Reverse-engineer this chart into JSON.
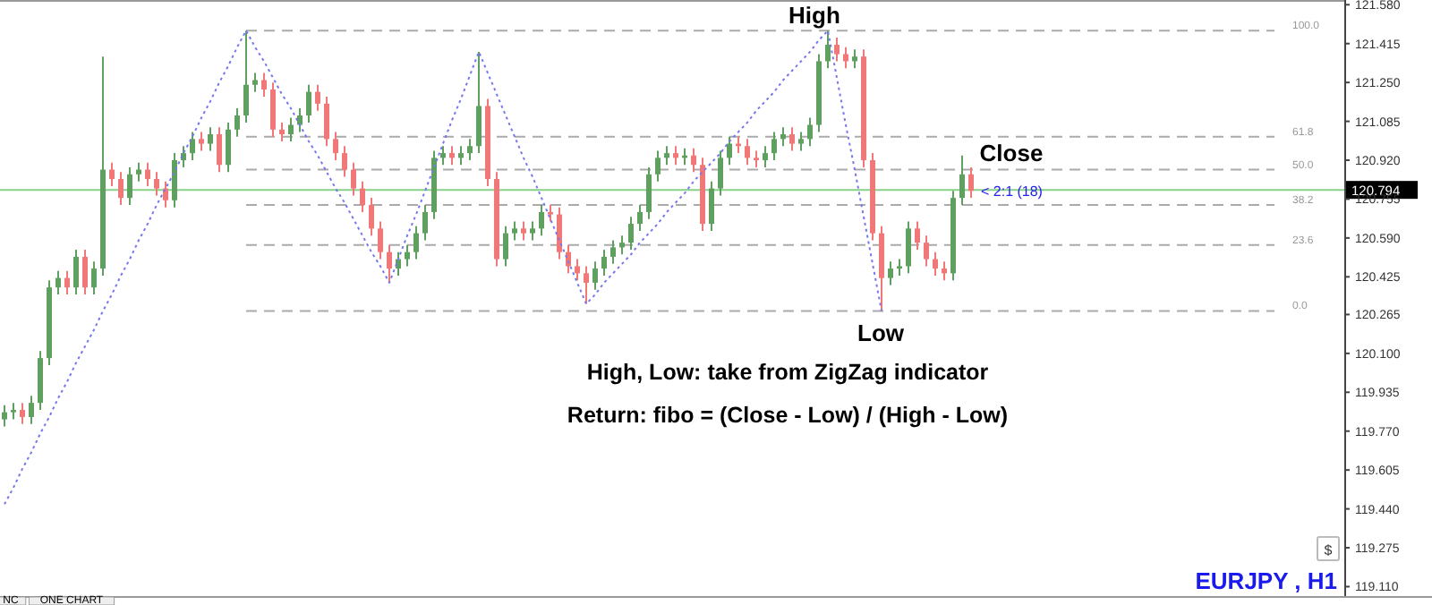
{
  "chart_data": {
    "type": "candlestick",
    "title": "EURJPY , H1",
    "categories": [
      null,
      null,
      null,
      null,
      null,
      null,
      null,
      null,
      null,
      null,
      null,
      null,
      null,
      null,
      null,
      null,
      null,
      null,
      null,
      null,
      null,
      null,
      null,
      null,
      null,
      null,
      null,
      null,
      null,
      null,
      null,
      null,
      null,
      null,
      null,
      null,
      null,
      null,
      null,
      null,
      null,
      null,
      null,
      null,
      null,
      null,
      null,
      null,
      null,
      null,
      null,
      null,
      null,
      null,
      null,
      null,
      null,
      null,
      null,
      null,
      null,
      null,
      null,
      null,
      null,
      null,
      null,
      null,
      null,
      null,
      null,
      null,
      null,
      null,
      null,
      null,
      null,
      null,
      null,
      null,
      null,
      null,
      null,
      null,
      null,
      null,
      null,
      null,
      null,
      null,
      null,
      null,
      null,
      null,
      null,
      null,
      null,
      null,
      null,
      null,
      null,
      null,
      null,
      null,
      null,
      null,
      null,
      null,
      null
    ],
    "ohlc": [
      [
        119.82,
        119.88,
        119.79,
        119.85
      ],
      [
        119.85,
        119.89,
        119.82,
        119.86
      ],
      [
        119.86,
        119.89,
        119.8,
        119.83
      ],
      [
        119.83,
        119.92,
        119.8,
        119.89
      ],
      [
        119.89,
        120.11,
        119.86,
        120.08
      ],
      [
        120.08,
        120.41,
        120.05,
        120.38
      ],
      [
        120.38,
        120.45,
        120.35,
        120.42
      ],
      [
        120.42,
        120.45,
        120.35,
        120.38
      ],
      [
        120.38,
        120.54,
        120.35,
        120.51
      ],
      [
        120.51,
        120.54,
        120.35,
        120.38
      ],
      [
        120.38,
        120.49,
        120.35,
        120.46
      ],
      [
        120.46,
        121.36,
        120.43,
        120.88
      ],
      [
        120.88,
        120.91,
        120.81,
        120.84
      ],
      [
        120.84,
        120.87,
        120.73,
        120.76
      ],
      [
        120.76,
        120.89,
        120.73,
        120.86
      ],
      [
        120.86,
        120.91,
        120.83,
        120.88
      ],
      [
        120.88,
        120.91,
        120.81,
        120.84
      ],
      [
        120.84,
        120.87,
        120.77,
        120.8
      ],
      [
        120.8,
        120.83,
        120.72,
        120.75
      ],
      [
        120.75,
        120.95,
        120.72,
        120.92
      ],
      [
        120.92,
        120.98,
        120.89,
        120.95
      ],
      [
        120.95,
        121.04,
        120.92,
        121.01
      ],
      [
        121.01,
        121.04,
        120.96,
        120.99
      ],
      [
        120.99,
        121.06,
        120.96,
        121.03
      ],
      [
        121.03,
        121.06,
        120.87,
        120.9
      ],
      [
        120.9,
        121.08,
        120.87,
        121.05
      ],
      [
        121.05,
        121.14,
        121.02,
        121.11
      ],
      [
        121.11,
        121.47,
        121.08,
        121.24
      ],
      [
        121.24,
        121.29,
        121.21,
        121.26
      ],
      [
        121.26,
        121.29,
        121.19,
        121.22
      ],
      [
        121.22,
        121.25,
        121.02,
        121.05
      ],
      [
        121.05,
        121.08,
        121,
        121.03
      ],
      [
        121.03,
        121.1,
        121,
        121.07
      ],
      [
        121.07,
        121.14,
        121.04,
        121.11
      ],
      [
        121.11,
        121.24,
        121.08,
        121.21
      ],
      [
        121.21,
        121.24,
        121.13,
        121.16
      ],
      [
        121.16,
        121.19,
        120.98,
        121.01
      ],
      [
        121.01,
        121.04,
        120.92,
        120.95
      ],
      [
        120.95,
        120.98,
        120.85,
        120.88
      ],
      [
        120.88,
        120.91,
        120.77,
        120.8
      ],
      [
        120.8,
        120.83,
        120.7,
        120.73
      ],
      [
        120.73,
        120.76,
        120.6,
        120.63
      ],
      [
        120.63,
        120.66,
        120.5,
        120.53
      ],
      [
        120.53,
        120.56,
        120.4,
        120.46
      ],
      [
        120.46,
        120.53,
        120.43,
        120.5
      ],
      [
        120.5,
        120.56,
        120.47,
        120.53
      ],
      [
        120.53,
        120.64,
        120.5,
        120.61
      ],
      [
        120.61,
        120.73,
        120.58,
        120.7
      ],
      [
        120.7,
        120.96,
        120.67,
        120.93
      ],
      [
        120.93,
        120.98,
        120.9,
        120.95
      ],
      [
        120.95,
        120.98,
        120.9,
        120.93
      ],
      [
        120.93,
        120.98,
        120.9,
        120.95
      ],
      [
        120.95,
        121.01,
        120.92,
        120.98
      ],
      [
        120.98,
        121.38,
        120.95,
        121.15
      ],
      [
        121.15,
        121.18,
        120.81,
        120.84
      ],
      [
        120.84,
        120.87,
        120.47,
        120.5
      ],
      [
        120.5,
        120.64,
        120.47,
        120.61
      ],
      [
        120.61,
        120.66,
        120.58,
        120.63
      ],
      [
        120.63,
        120.66,
        120.58,
        120.61
      ],
      [
        120.61,
        120.66,
        120.58,
        120.63
      ],
      [
        120.63,
        120.73,
        120.6,
        120.7
      ],
      [
        120.7,
        120.73,
        120.66,
        120.69
      ],
      [
        120.69,
        120.72,
        120.5,
        120.53
      ],
      [
        120.53,
        120.56,
        120.44,
        120.47
      ],
      [
        120.47,
        120.5,
        120.41,
        120.44
      ],
      [
        120.44,
        120.47,
        120.31,
        120.4
      ],
      [
        120.4,
        120.49,
        120.37,
        120.46
      ],
      [
        120.46,
        120.54,
        120.43,
        120.51
      ],
      [
        120.51,
        120.58,
        120.48,
        120.55
      ],
      [
        120.55,
        120.6,
        120.52,
        120.57
      ],
      [
        120.57,
        120.68,
        120.54,
        120.65
      ],
      [
        120.65,
        120.73,
        120.62,
        120.7
      ],
      [
        120.7,
        120.89,
        120.67,
        120.86
      ],
      [
        120.86,
        120.96,
        120.83,
        120.93
      ],
      [
        120.93,
        120.98,
        120.9,
        120.95
      ],
      [
        120.95,
        120.98,
        120.9,
        120.93
      ],
      [
        120.93,
        120.97,
        120.9,
        120.94
      ],
      [
        120.94,
        120.97,
        120.87,
        120.9
      ],
      [
        120.9,
        120.93,
        120.62,
        120.65
      ],
      [
        120.65,
        120.83,
        120.62,
        120.8
      ],
      [
        120.8,
        120.96,
        120.77,
        120.93
      ],
      [
        120.93,
        121.02,
        120.9,
        120.99
      ],
      [
        120.99,
        121.02,
        120.95,
        120.98
      ],
      [
        120.98,
        121.01,
        120.9,
        120.93
      ],
      [
        120.93,
        120.96,
        120.89,
        120.92
      ],
      [
        120.92,
        120.98,
        120.89,
        120.95
      ],
      [
        120.95,
        121.04,
        120.92,
        121.01
      ],
      [
        121.01,
        121.06,
        120.98,
        121.03
      ],
      [
        121.03,
        121.06,
        120.96,
        120.99
      ],
      [
        120.99,
        121.04,
        120.96,
        121.01
      ],
      [
        121.01,
        121.1,
        120.98,
        121.07
      ],
      [
        121.07,
        121.37,
        121.04,
        121.34
      ],
      [
        121.34,
        121.47,
        121.31,
        121.41
      ],
      [
        121.41,
        121.44,
        121.34,
        121.37
      ],
      [
        121.37,
        121.4,
        121.31,
        121.34
      ],
      [
        121.34,
        121.39,
        121.31,
        121.36
      ],
      [
        121.36,
        121.39,
        120.89,
        120.92
      ],
      [
        120.92,
        120.95,
        120.58,
        120.61
      ],
      [
        120.61,
        120.64,
        120.28,
        120.42
      ],
      [
        120.42,
        120.49,
        120.39,
        120.46
      ],
      [
        120.46,
        120.5,
        120.43,
        120.47
      ],
      [
        120.47,
        120.66,
        120.44,
        120.63
      ],
      [
        120.63,
        120.66,
        120.54,
        120.57
      ],
      [
        120.57,
        120.6,
        120.47,
        120.5
      ],
      [
        120.5,
        120.53,
        120.43,
        120.46
      ],
      [
        120.46,
        120.49,
        120.41,
        120.44
      ],
      [
        120.44,
        120.79,
        120.41,
        120.76
      ],
      [
        120.76,
        120.94,
        120.73,
        120.86
      ],
      [
        120.86,
        120.89,
        120.76,
        120.79
      ]
    ],
    "colors": [
      "#5f9f5f",
      "#5f9f5f",
      "#f07878",
      "#5f9f5f",
      "#5f9f5f",
      "#5f9f5f",
      "#5f9f5f",
      "#f07878",
      "#5f9f5f",
      "#f07878",
      "#5f9f5f",
      "#5f9f5f",
      "#f07878",
      "#f07878",
      "#5f9f5f",
      "#5f9f5f",
      "#f07878",
      "#f07878",
      "#f07878",
      "#5f9f5f",
      "#5f9f5f",
      "#5f9f5f",
      "#f07878",
      "#5f9f5f",
      "#f07878",
      "#5f9f5f",
      "#5f9f5f",
      "#5f9f5f",
      "#5f9f5f",
      "#f07878",
      "#f07878",
      "#f07878",
      "#5f9f5f",
      "#5f9f5f",
      "#5f9f5f",
      "#f07878",
      "#f07878",
      "#f07878",
      "#f07878",
      "#f07878",
      "#f07878",
      "#f07878",
      "#f07878",
      "#f07878",
      "#5f9f5f",
      "#5f9f5f",
      "#5f9f5f",
      "#5f9f5f",
      "#5f9f5f",
      "#5f9f5f",
      "#f07878",
      "#5f9f5f",
      "#5f9f5f",
      "#5f9f5f",
      "#f07878",
      "#f07878",
      "#5f9f5f",
      "#5f9f5f",
      "#f07878",
      "#5f9f5f",
      "#5f9f5f",
      "#f07878",
      "#f07878",
      "#f07878",
      "#f07878",
      "#f07878",
      "#5f9f5f",
      "#5f9f5f",
      "#5f9f5f",
      "#5f9f5f",
      "#5f9f5f",
      "#5f9f5f",
      "#5f9f5f",
      "#5f9f5f",
      "#5f9f5f",
      "#f07878",
      "#5f9f5f",
      "#f07878",
      "#f07878",
      "#5f9f5f",
      "#5f9f5f",
      "#5f9f5f",
      "#f07878",
      "#f07878",
      "#f07878",
      "#5f9f5f",
      "#5f9f5f",
      "#5f9f5f",
      "#f07878",
      "#5f9f5f",
      "#5f9f5f",
      "#5f9f5f",
      "#5f9f5f",
      "#f07878",
      "#f07878",
      "#5f9f5f",
      "#f07878",
      "#f07878",
      "#f07878",
      "#5f9f5f",
      "#5f9f5f",
      "#5f9f5f",
      "#f07878",
      "#f07878",
      "#f07878",
      "#f07878",
      "#5f9f5f",
      "#5f9f5f",
      "#f07878"
    ],
    "series": [
      {
        "type": "line",
        "color": "#7777ee",
        "line_style": "dotted",
        "values": [
          119.46,
          119.53,
          119.61,
          119.68,
          119.76,
          119.83,
          119.91,
          119.98,
          120.06,
          120.13,
          120.2,
          120.28,
          120.35,
          120.43,
          120.5,
          120.58,
          120.65,
          120.73,
          120.8,
          120.87,
          120.95,
          121.02,
          121.1,
          121.17,
          121.25,
          121.32,
          121.4,
          121.47,
          121.4,
          121.34,
          121.27,
          121.2,
          121.14,
          121.07,
          121,
          120.94,
          120.87,
          120.8,
          120.74,
          120.67,
          120.6,
          120.53,
          120.47,
          120.4,
          120.5,
          120.6,
          120.69,
          120.79,
          120.89,
          120.99,
          121.09,
          121.18,
          121.28,
          121.38,
          121.29,
          121.2,
          121.11,
          121.02,
          120.93,
          120.85,
          120.76,
          120.67,
          120.58,
          120.49,
          120.4,
          120.31,
          120.35,
          120.4,
          120.44,
          120.48,
          120.52,
          120.57,
          120.61,
          120.65,
          120.7,
          120.74,
          120.78,
          120.83,
          120.87,
          120.91,
          120.95,
          121,
          121.04,
          121.08,
          121.13,
          121.17,
          121.21,
          121.26,
          121.3,
          121.34,
          121.38,
          121.43,
          121.47,
          121.27,
          121.07,
          120.88,
          120.68,
          120.48,
          120.28,
          null,
          null,
          null,
          null,
          null,
          null,
          null,
          null,
          null,
          null
        ]
      }
    ],
    "ylim": [
      119.07,
      121.6
    ],
    "yticks": [
      {
        "value": 121.58,
        "label": "121.580"
      },
      {
        "value": 121.415,
        "label": "121.415"
      },
      {
        "value": 121.25,
        "label": "121.250"
      },
      {
        "value": 121.085,
        "label": "121.085"
      },
      {
        "value": 120.92,
        "label": "120.920"
      },
      {
        "value": 120.755,
        "label": "120.755"
      },
      {
        "value": 120.59,
        "label": "120.590"
      },
      {
        "value": 120.425,
        "label": "120.425"
      },
      {
        "value": 120.265,
        "label": "120.265"
      },
      {
        "value": 120.1,
        "label": "120.100"
      },
      {
        "value": 119.935,
        "label": "119.935"
      },
      {
        "value": 119.77,
        "label": "119.770"
      },
      {
        "value": 119.605,
        "label": "119.605"
      },
      {
        "value": 119.44,
        "label": "119.440"
      },
      {
        "value": 119.275,
        "label": "119.275"
      },
      {
        "value": 119.11,
        "label": "119.110"
      }
    ],
    "tick_labels": "y",
    "ref_lines": [
      {
        "axis": "y",
        "value": 121.47,
        "color": "#aaaaaa",
        "line_style": "dashed"
      },
      {
        "axis": "y",
        "value": 121.02,
        "color": "#aaaaaa",
        "line_style": "dashed"
      },
      {
        "axis": "y",
        "value": 120.88,
        "color": "#aaaaaa",
        "line_style": "dashed"
      },
      {
        "axis": "y",
        "value": 120.73,
        "color": "#aaaaaa",
        "line_style": "dashed"
      },
      {
        "axis": "y",
        "value": 120.56,
        "color": "#aaaaaa",
        "line_style": "dashed"
      },
      {
        "axis": "y",
        "value": 120.28,
        "color": "#aaaaaa",
        "line_style": "dashed"
      },
      {
        "axis": "y",
        "value": 120.794,
        "label": "120.794",
        "color": "#88d088",
        "line_style": "solid"
      }
    ],
    "annotations": [
      {
        "text": "High",
        "y": 121.47
      },
      {
        "text": "Low",
        "y": 120.28
      },
      {
        "text": "< 2:1 (18)",
        "y": 120.79
      },
      "Close",
      "100.0",
      "61.8",
      "50.0",
      "38.2",
      "23.6",
      "0.0",
      "$",
      "High, Low: take from ZigZag indicator",
      "Return: fibo = (Close - Low) / (High - Low)",
      "NC",
      "ONE CHART"
    ]
  }
}
